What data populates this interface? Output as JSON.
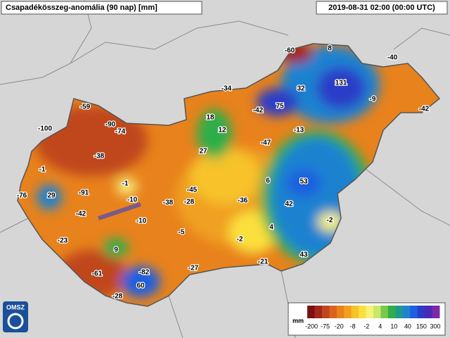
{
  "header": {
    "title": "Csapadékösszeg-anomália (90 nap) [mm]",
    "timestamp": "2019-08-31 02:00 (00:00 UTC)"
  },
  "logo": "OMSZ",
  "stations": [
    -60,
    8,
    -40,
    131,
    -34,
    32,
    -59,
    -9,
    -42,
    75,
    -42,
    18,
    -90,
    -74,
    -100,
    12,
    -13,
    -47,
    27,
    -38,
    -1,
    6,
    53,
    -91,
    -1,
    -45,
    29,
    -76,
    -10,
    -38,
    -28,
    -36,
    42,
    -42,
    -10,
    -5,
    4,
    -2,
    -23,
    -2,
    9,
    43,
    -21,
    -27,
    -82,
    -61,
    60,
    -28
  ],
  "legend": {
    "unit": "mm",
    "ticks": [
      -200,
      -75,
      -20,
      -8,
      -2,
      4,
      10,
      40,
      150,
      300
    ],
    "colors": [
      "#7a1010",
      "#a0281a",
      "#c0461f",
      "#d9621e",
      "#e8821c",
      "#f0a020",
      "#f7c22a",
      "#fbe03c",
      "#f6f27a",
      "#c8e86a",
      "#7cc84a",
      "#2fae4a",
      "#1f9a8a",
      "#1e82d0",
      "#1e5ee0",
      "#2a3cc8",
      "#4a2ab0",
      "#7a2aa8"
    ]
  }
}
